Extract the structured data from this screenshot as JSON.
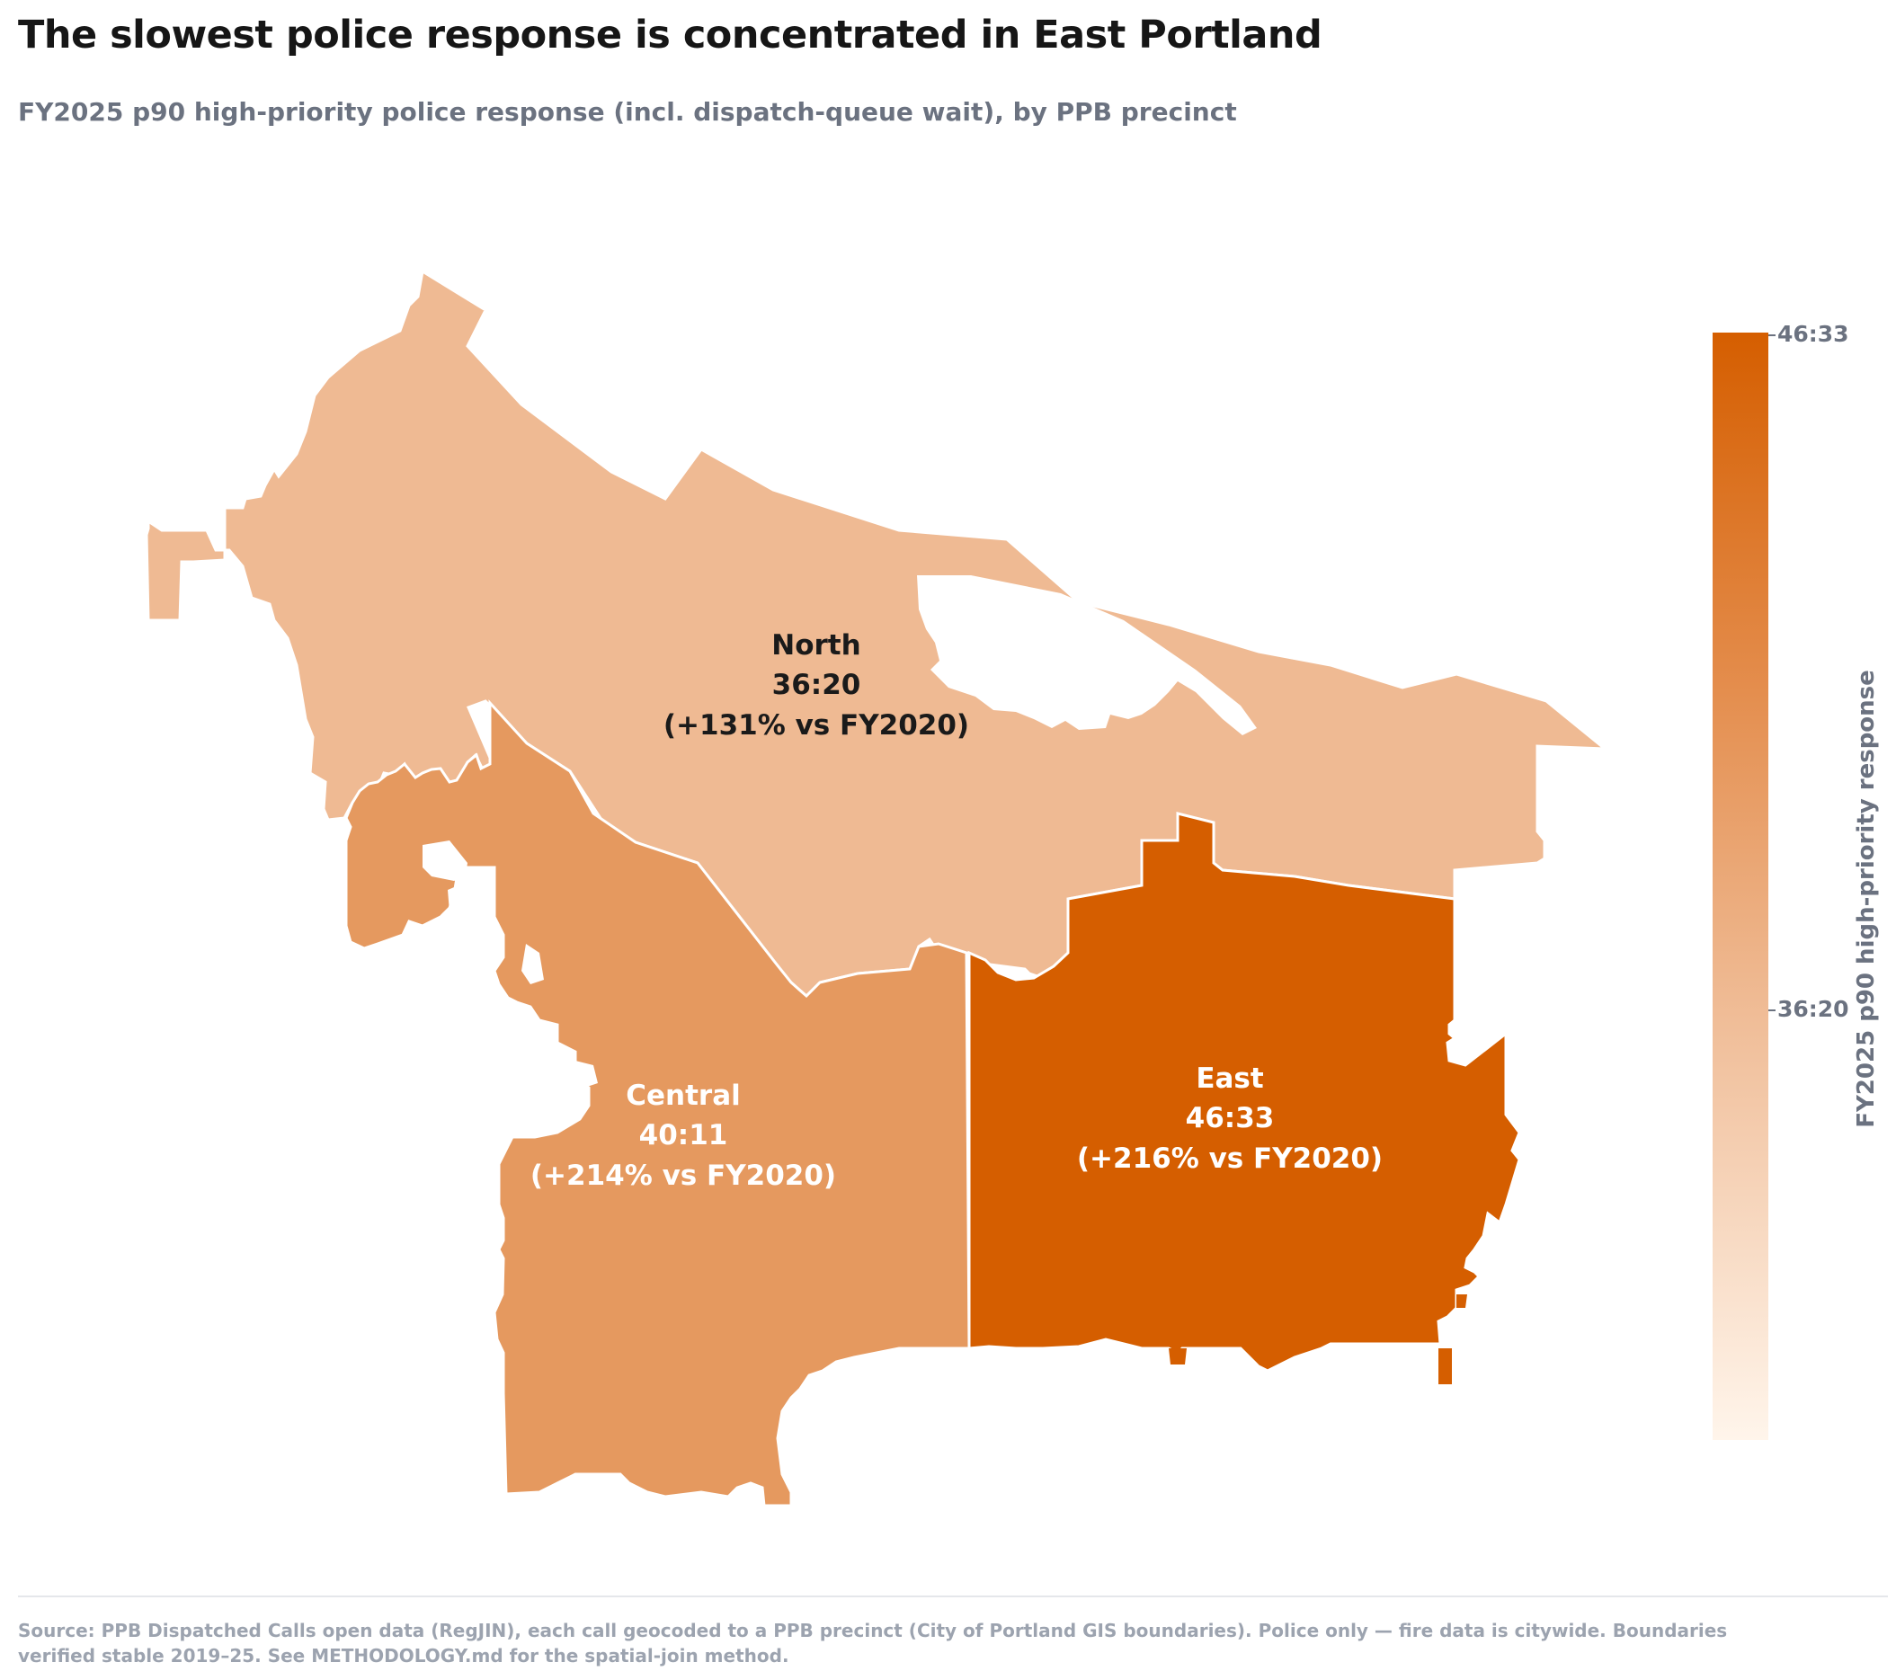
{
  "title": "The slowest police response is concentrated in East Portland",
  "subtitle": "FY2025 p90 high-priority police response (incl. dispatch-queue wait), by PPB precinct",
  "colors": {
    "north": "#efba93",
    "central": "#e5995f",
    "east": "#d55e00",
    "scale_max": "#d55e00",
    "scale_min": "#fff5eb",
    "boundary": "#ffffff"
  },
  "precincts": [
    {
      "name": "North",
      "value": "36:20",
      "change": "(+131% vs FY2020)",
      "color": "#efba93"
    },
    {
      "name": "Central",
      "value": "40:11",
      "change": "(+214% vs FY2020)",
      "color": "#e5995f"
    },
    {
      "name": "East",
      "value": "46:33",
      "change": "(+216% vs FY2020)",
      "color": "#d55e00"
    }
  ],
  "legend": {
    "title": "FY2025 p90 high-priority response",
    "ticks": [
      "46:33",
      "36:20"
    ]
  },
  "source": "Source: PPB Dispatched Calls open data (RegJIN), each call geocoded to a PPB precinct (City of Portland GIS boundaries). Police only — fire data is citywide. Boundaries verified stable 2019–25. See METHODOLOGY.md for the spatial-join method."
}
